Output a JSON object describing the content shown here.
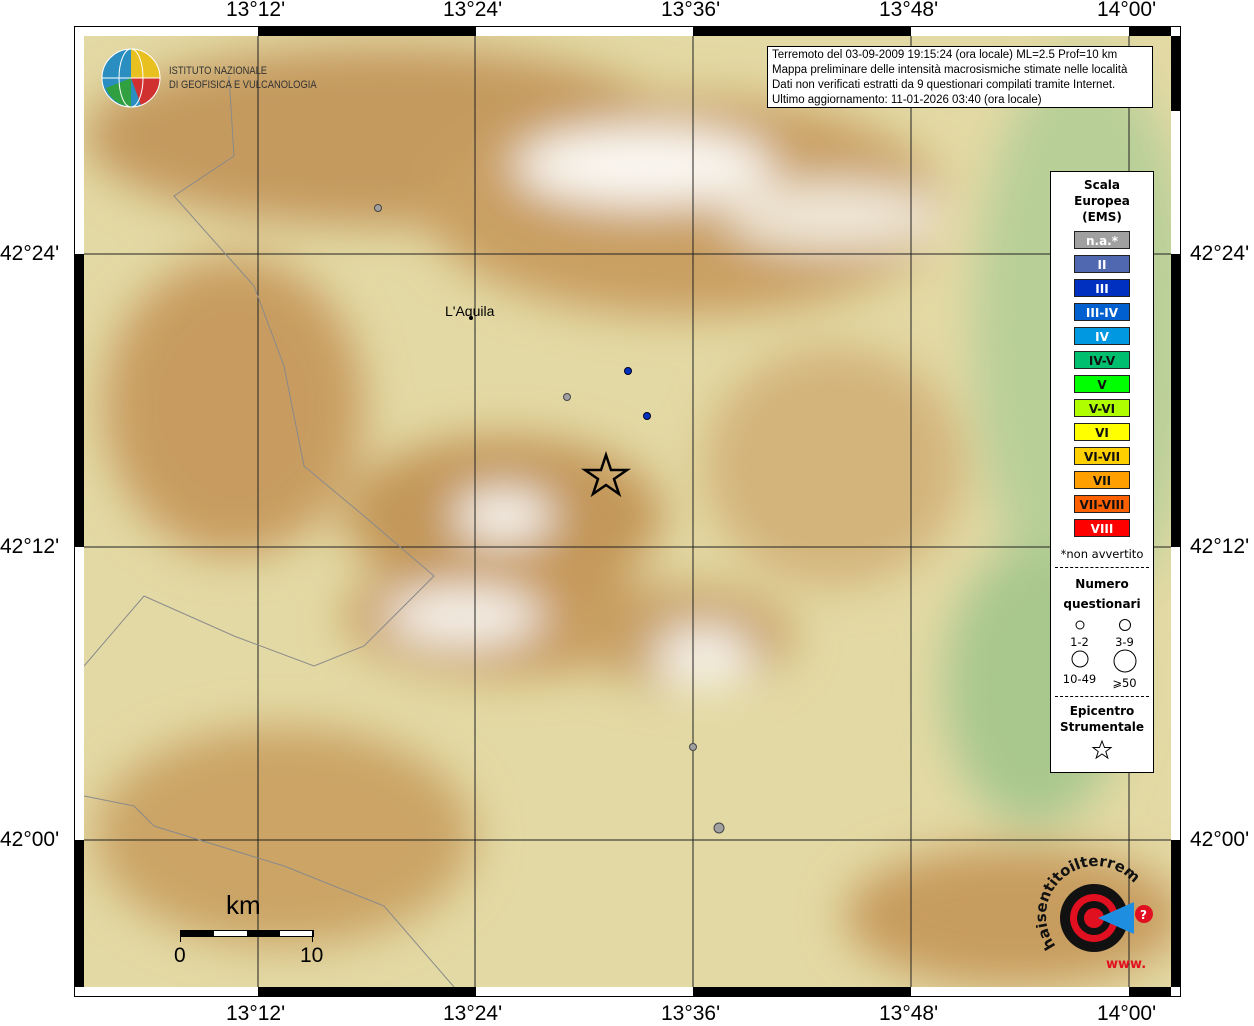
{
  "axes": {
    "lon_ticks": [
      "13°12'",
      "13°24'",
      "13°36'",
      "13°48'",
      "14°00'"
    ],
    "lat_ticks": [
      "42°24'",
      "42°12'",
      "42°00'"
    ]
  },
  "logo": {
    "line1": "ISTITUTO NAZIONALE",
    "line2": "DI GEOFISICA E VULCANOLOGIA"
  },
  "info": [
    "Terremoto del 03-09-2009 19:15:24 (ora locale) ML=2.5 Prof=10 km",
    "Mappa preliminare delle intensità macrosismiche stimate nelle località",
    "Dati non verificati estratti da 9 questionari compilati tramite Internet.",
    "Ultimo aggiornamento: 11-01-2026 03:40 (ora locale)"
  ],
  "city": "L'Aquila",
  "legend": {
    "title": [
      "Scala",
      "Europea",
      "(EMS)"
    ],
    "scale": [
      {
        "label": "n.a.*",
        "color": "#a0a0a0"
      },
      {
        "label": "II",
        "color": "#5068b0"
      },
      {
        "label": "III",
        "color": "#0030c0"
      },
      {
        "label": "III-IV",
        "color": "#0060d0"
      },
      {
        "label": "IV",
        "color": "#0098e0"
      },
      {
        "label": "IV-V",
        "color": "#00c070",
        "dark": true
      },
      {
        "label": "V",
        "color": "#00ff00",
        "dark": true
      },
      {
        "label": "V-VI",
        "color": "#b0ff00",
        "dark": true
      },
      {
        "label": "VI",
        "color": "#ffff00",
        "dark": true
      },
      {
        "label": "VI-VII",
        "color": "#ffd000",
        "dark": true
      },
      {
        "label": "VII",
        "color": "#ffa000",
        "dark": true
      },
      {
        "label": "VII-VIII",
        "color": "#ff6000",
        "dark": true
      },
      {
        "label": "VIII",
        "color": "#ff0000"
      }
    ],
    "note": "*non avvertito",
    "count_title": [
      "Numero",
      "questionari"
    ],
    "counts": [
      "1-2",
      "3-9",
      "10-49",
      "⩾50"
    ],
    "epi_title": [
      "Epicentro",
      "Strumentale"
    ]
  },
  "scalebar": {
    "unit": "km",
    "min": "0",
    "max": "10"
  },
  "badge": {
    "text": "haisentitoilterremoto.it",
    "prefix": "www."
  }
}
